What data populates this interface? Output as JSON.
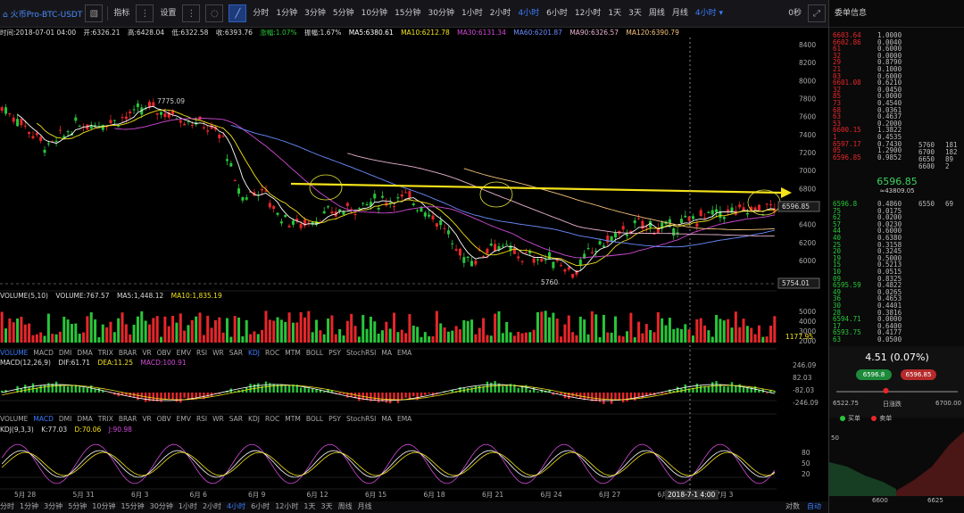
{
  "toolbar": {
    "symbol": "火币Pro-BTC-USDT",
    "indicator_label": "指标",
    "settings_label": "设置",
    "timeframes": [
      "分时",
      "1分钟",
      "3分钟",
      "5分钟",
      "10分钟",
      "15分钟",
      "30分钟",
      "1小时",
      "2小时",
      "4小时",
      "6小时",
      "12小时",
      "1天",
      "3天",
      "周线",
      "月线"
    ],
    "active_timeframe": "4小时",
    "current_tf_dropdown": "4小时",
    "right_label": "0秒"
  },
  "price_info": {
    "time": "时间:2018-07-01 04:00",
    "open": "开:6326.21",
    "high": "高:6428.04",
    "low": "低:6322.58",
    "close": "收:6393.76",
    "change": "涨幅:1.07%",
    "amplitude": "振幅:1.67%",
    "ma5": "MA5:6380.61",
    "ma10": "MA10:6212.78",
    "ma30": "MA30:6131.34",
    "ma60": "MA60:6201.87",
    "ma90": "MA90:6326.57",
    "ma120": "MA120:6390.79"
  },
  "volume_info": {
    "title": "VOLUME(5,10)",
    "volume": "VOLUME:767.57",
    "ma5": "MA5:1,448.12",
    "ma10": "MA10:1,835.19",
    "current": "1177.95"
  },
  "macd_info": {
    "title": "MACD(12,26,9)",
    "dif": "DIF:61.71",
    "dea": "DEA:11.25",
    "macd": "MACD:100.91"
  },
  "kdj_info": {
    "title": "KDJ(9,3,3)",
    "k": "K:77.03",
    "d": "D:70.06",
    "j": "J:90.98"
  },
  "indicator_tabs": [
    "VOLUME",
    "MACD",
    "DMI",
    "DMA",
    "TRIX",
    "BRAR",
    "VR",
    "OBV",
    "EMV",
    "RSI",
    "WR",
    "SAR",
    "KDJ",
    "ROC",
    "MTM",
    "BOLL",
    "PSY",
    "StochRSI",
    "MA",
    "EMA"
  ],
  "price_axis": [
    "8400",
    "8200",
    "8000",
    "7800",
    "7600",
    "7400",
    "7200",
    "7000",
    "6800",
    "6600",
    "6400",
    "6200",
    "6000"
  ],
  "price_tags": {
    "current": "6596.85",
    "low_line": "5754.01",
    "high_label": "7775.09",
    "low_label": "5760"
  },
  "volume_axis": [
    "5000",
    "4000",
    "3000",
    "2000"
  ],
  "macd_axis": [
    "246.09",
    "82.03",
    "-82.03",
    "-246.09"
  ],
  "kdj_axis": [
    "80",
    "50",
    "20"
  ],
  "date_axis": [
    "5月 28",
    "5月 31",
    "6月 3",
    "6月 6",
    "6月 9",
    "6月 12",
    "6月 15",
    "6月 18",
    "6月 21",
    "6月 24",
    "6月 27",
    "6月 30",
    "7月 3"
  ],
  "crosshair_date": "2018-7-1 4:00",
  "bottom": {
    "timeframes": [
      "分时",
      "1分钟",
      "3分钟",
      "5分钟",
      "10分钟",
      "15分钟",
      "30分钟",
      "1小时",
      "2小时",
      "4小时",
      "6小时",
      "12小时",
      "1天",
      "3天",
      "周线",
      "月线"
    ],
    "active": "4小时",
    "right1": "对数",
    "right2": "自动"
  },
  "colors": {
    "up": "#28c63a",
    "down": "#e8262a",
    "accent": "#3a7cff",
    "arrow": "#f4e21a",
    "bg": "#000000"
  },
  "sidepanel": {
    "title": "委单信息",
    "asks": [
      {
        "p": "6603.64",
        "q": "1.0000"
      },
      {
        "p": "6602.86",
        "q": "0.0040"
      },
      {
        "p": "61",
        "q": "0.6000"
      },
      {
        "p": "32",
        "q": "0.0000"
      },
      {
        "p": "29",
        "q": "0.8790"
      },
      {
        "p": "21",
        "q": "0.1000"
      },
      {
        "p": "03",
        "q": "0.6000"
      },
      {
        "p": "6601.08",
        "q": "0.6210"
      },
      {
        "p": "32",
        "q": "0.0450"
      },
      {
        "p": "85",
        "q": "0.0000"
      },
      {
        "p": "73",
        "q": "0.4540"
      },
      {
        "p": "68",
        "q": "0.0361"
      },
      {
        "p": "63",
        "q": "0.4637"
      },
      {
        "p": "53",
        "q": "0.2000"
      },
      {
        "p": "6600.15",
        "q": "1.3822"
      },
      {
        "p": "1",
        "q": "0.4535"
      },
      {
        "p": "6597.17",
        "q": "0.7430"
      },
      {
        "p": "05",
        "q": "1.2900"
      },
      {
        "p": "6596.85",
        "q": "0.9852"
      }
    ],
    "ask_depth": [
      {
        "p": "5760",
        "q": "181"
      },
      {
        "p": "6700",
        "q": "182"
      },
      {
        "p": "6650",
        "q": "89"
      },
      {
        "p": "6600",
        "q": "2"
      }
    ],
    "mid_price": "6596.85",
    "mid_sub": "≈43809.05",
    "bids": [
      {
        "p": "6596.8",
        "q": "0.4860"
      },
      {
        "p": "75",
        "q": "0.0175"
      },
      {
        "p": "62",
        "q": "0.0200"
      },
      {
        "p": "57",
        "q": "0.0230"
      },
      {
        "p": "44",
        "q": "0.6000"
      },
      {
        "p": "40",
        "q": "0.6380"
      },
      {
        "p": "25",
        "q": "0.3158"
      },
      {
        "p": "20",
        "q": "0.3245"
      },
      {
        "p": "19",
        "q": "0.5000"
      },
      {
        "p": "15",
        "q": "0.5213"
      },
      {
        "p": "10",
        "q": "0.0515"
      },
      {
        "p": "09",
        "q": "0.8325"
      },
      {
        "p": "6595.59",
        "q": "0.4822"
      },
      {
        "p": "49",
        "q": "0.0265"
      },
      {
        "p": "36",
        "q": "0.4653"
      },
      {
        "p": "30",
        "q": "0.4401"
      },
      {
        "p": "28",
        "q": "0.3816"
      },
      {
        "p": "6594.71",
        "q": "0.0000"
      },
      {
        "p": "17",
        "q": "0.6400"
      },
      {
        "p": "6593.75",
        "q": "0.4177"
      },
      {
        "p": "63",
        "q": "0.0500"
      }
    ],
    "bid_depth": [
      {
        "p": "6550",
        "q": "69"
      }
    ],
    "change": "4.51  (0.07%)",
    "buy_price": "6596.8",
    "sell_price": "6596.85",
    "range_low": "6522.75",
    "range_label": "日涨跌",
    "range_high": "6700.00",
    "buy_label": "买单",
    "sell_label": "卖单",
    "depth_y": "50",
    "depth_x": [
      "6600",
      "6625"
    ]
  }
}
